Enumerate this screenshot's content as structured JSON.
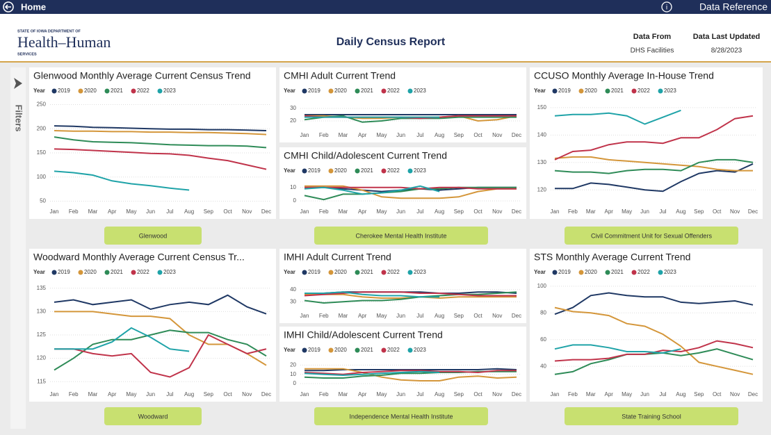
{
  "header": {
    "home": "Home",
    "data_reference": "Data Reference",
    "agency_line": "STATE OF IOWA DEPARTMENT OF",
    "agency_name": "Health–Human",
    "agency_sub": "SERVICES",
    "title": "Daily Census Report",
    "data_from_label": "Data From",
    "data_from": "DHS Facilities",
    "updated_label": "Data Last Updated",
    "updated": "8/28/2023"
  },
  "filters": "Filters",
  "buttons": [
    "Glenwood",
    "Cherokee Mental Health Institute",
    "Civil Commitment Unit for Sexual Offenders",
    "Woodward",
    "Independence Mental Health Institute",
    "State Training School"
  ],
  "chart_data": [
    {
      "type": "line",
      "title": "Glenwood Monthly Average Current Census Trend",
      "legend_title": "Year",
      "categories": [
        "Jan",
        "Feb",
        "Mar",
        "Apr",
        "May",
        "Jun",
        "Jul",
        "Aug",
        "Sep",
        "Oct",
        "Nov",
        "Dec"
      ],
      "ylim": [
        45,
        255
      ],
      "yticks": [
        50,
        100,
        150,
        200,
        250
      ],
      "grid": true,
      "series": [
        {
          "name": "2019",
          "color": "#1f3864",
          "values": [
            206,
            205,
            203,
            202,
            201,
            200,
            199,
            199,
            198,
            198,
            197,
            196
          ]
        },
        {
          "name": "2020",
          "color": "#d4963a",
          "values": [
            196,
            195,
            195,
            194,
            194,
            193,
            193,
            192,
            192,
            191,
            190,
            188
          ]
        },
        {
          "name": "2021",
          "color": "#2e8b57",
          "values": [
            183,
            177,
            173,
            172,
            171,
            169,
            167,
            166,
            165,
            165,
            164,
            161
          ]
        },
        {
          "name": "2022",
          "color": "#c0334a",
          "values": [
            158,
            157,
            155,
            153,
            151,
            149,
            148,
            145,
            139,
            134,
            125,
            116
          ]
        },
        {
          "name": "2023",
          "color": "#1fa3a8",
          "values": [
            112,
            109,
            104,
            92,
            86,
            82,
            77,
            73,
            null,
            null,
            null,
            null
          ]
        }
      ]
    },
    {
      "type": "line",
      "title": "CMHI Adult Current Trend",
      "legend_title": "Year",
      "categories": [
        "Jan",
        "Feb",
        "Mar",
        "Apr",
        "May",
        "Jun",
        "Jul",
        "Aug",
        "Sep",
        "Oct",
        "Nov",
        "Dec"
      ],
      "ylim": [
        15,
        35
      ],
      "yticks": [
        20,
        30
      ],
      "grid": true,
      "series": [
        {
          "name": "2019",
          "color": "#1f3864",
          "values": [
            25,
            25,
            25,
            25,
            25,
            25,
            25,
            25,
            25,
            25,
            25,
            25
          ]
        },
        {
          "name": "2020",
          "color": "#d4963a",
          "values": [
            24,
            24,
            23,
            22,
            22,
            23,
            23,
            23,
            24,
            20,
            21,
            24
          ]
        },
        {
          "name": "2021",
          "color": "#2e8b57",
          "values": [
            21,
            23,
            24,
            19,
            20,
            22,
            22,
            22,
            23,
            23,
            23,
            23
          ]
        },
        {
          "name": "2022",
          "color": "#c0334a",
          "values": [
            24,
            23,
            23,
            23,
            23,
            23,
            22,
            23,
            24,
            24,
            24,
            24
          ]
        },
        {
          "name": "2023",
          "color": "#1fa3a8",
          "values": [
            23,
            23,
            23,
            23,
            23,
            23,
            23,
            23,
            null,
            null,
            null,
            null
          ]
        }
      ]
    },
    {
      "type": "line",
      "title": "CMHI Child/Adolescent Current Trend",
      "legend_title": "Year",
      "categories": [
        "Jan",
        "Feb",
        "Mar",
        "Apr",
        "May",
        "Jun",
        "Jul",
        "Aug",
        "Sep",
        "Oct",
        "Nov",
        "Dec"
      ],
      "ylim": [
        -2,
        14
      ],
      "yticks": [
        0,
        10
      ],
      "grid": true,
      "series": [
        {
          "name": "2019",
          "color": "#1f3864",
          "values": [
            10,
            10,
            9,
            8,
            7,
            8,
            9,
            8,
            9,
            10,
            10,
            10
          ]
        },
        {
          "name": "2020",
          "color": "#d4963a",
          "values": [
            11,
            11,
            11,
            8,
            3,
            2,
            2,
            2,
            3,
            7,
            9,
            9
          ]
        },
        {
          "name": "2021",
          "color": "#2e8b57",
          "values": [
            4,
            1,
            5,
            5,
            6,
            7,
            9,
            9,
            10,
            10,
            10,
            10
          ]
        },
        {
          "name": "2022",
          "color": "#c0334a",
          "values": [
            10,
            10,
            10,
            10,
            10,
            10,
            9,
            10,
            10,
            9,
            9,
            9
          ]
        },
        {
          "name": "2023",
          "color": "#1fa3a8",
          "values": [
            9,
            10,
            8,
            5,
            6,
            8,
            11,
            7,
            null,
            null,
            null,
            null
          ]
        }
      ]
    },
    {
      "type": "line",
      "title": "CCUSO Monthly Average In-House Trend",
      "legend_title": "Year",
      "categories": [
        "Jan",
        "Feb",
        "Mar",
        "Apr",
        "May",
        "Jun",
        "Jul",
        "Aug",
        "Sep",
        "Oct",
        "Nov",
        "Dec"
      ],
      "ylim": [
        115,
        152
      ],
      "yticks": [
        120,
        130,
        140,
        150
      ],
      "grid": true,
      "series": [
        {
          "name": "2019",
          "color": "#1f3864",
          "values": [
            120.5,
            120.5,
            122.5,
            122,
            121,
            120,
            119.5,
            123,
            126,
            127,
            126.5,
            129.5
          ]
        },
        {
          "name": "2020",
          "color": "#d4963a",
          "values": [
            131.5,
            132,
            132,
            131,
            130.5,
            130,
            129.5,
            129,
            128.5,
            127.5,
            127,
            127
          ]
        },
        {
          "name": "2021",
          "color": "#2e8b57",
          "values": [
            127,
            126.5,
            126.5,
            126,
            127,
            127.5,
            127.5,
            127,
            130,
            131,
            131,
            130
          ]
        },
        {
          "name": "2022",
          "color": "#c0334a",
          "values": [
            131,
            134,
            134.5,
            136.5,
            137.5,
            137.5,
            137,
            139,
            139,
            142,
            146,
            147
          ]
        },
        {
          "name": "2023",
          "color": "#1fa3a8",
          "values": [
            147,
            147.5,
            147.5,
            148,
            147,
            144,
            146.5,
            149,
            null,
            null,
            null,
            null
          ]
        }
      ]
    },
    {
      "type": "line",
      "title": "Woodward Monthly Average Current Census Tr...",
      "legend_title": "Year",
      "categories": [
        "Jan",
        "Feb",
        "Mar",
        "Apr",
        "May",
        "Jun",
        "Jul",
        "Aug",
        "Sep",
        "Oct",
        "Nov",
        "Dec"
      ],
      "ylim": [
        114,
        136
      ],
      "yticks": [
        115,
        120,
        125,
        130,
        135
      ],
      "grid": true,
      "series": [
        {
          "name": "2019",
          "color": "#1f3864",
          "values": [
            132,
            132.5,
            131.5,
            132,
            132.5,
            130.5,
            131.5,
            132,
            131.5,
            133.5,
            131,
            129.5
          ]
        },
        {
          "name": "2020",
          "color": "#d4963a",
          "values": [
            130,
            130,
            130,
            129.5,
            129,
            129,
            128.5,
            125,
            123,
            123,
            121,
            118.5
          ]
        },
        {
          "name": "2021",
          "color": "#2e8b57",
          "values": [
            117.5,
            120,
            123,
            124,
            124,
            125,
            126,
            125.5,
            125.5,
            124,
            123,
            120.5
          ]
        },
        {
          "name": "2022",
          "color": "#c0334a",
          "values": [
            122,
            122,
            121,
            120.5,
            121,
            117,
            116,
            118,
            125,
            123,
            121,
            122
          ]
        },
        {
          "name": "2023",
          "color": "#1fa3a8",
          "values": [
            122,
            122,
            122,
            123.5,
            126.5,
            124.5,
            122,
            121.5,
            null,
            null,
            null,
            null
          ]
        }
      ]
    },
    {
      "type": "line",
      "title": "IMHI Adult Current Trend",
      "legend_title": "Year",
      "categories": [
        "Jan",
        "Feb",
        "Mar",
        "Apr",
        "May",
        "Jun",
        "Jul",
        "Aug",
        "Sep",
        "Oct",
        "Nov",
        "Dec"
      ],
      "ylim": [
        25,
        45
      ],
      "yticks": [
        30,
        40
      ],
      "grid": true,
      "series": [
        {
          "name": "2019",
          "color": "#1f3864",
          "values": [
            37,
            37,
            38,
            38,
            38,
            38,
            38,
            37,
            37,
            38,
            38,
            37
          ]
        },
        {
          "name": "2020",
          "color": "#d4963a",
          "values": [
            36,
            36,
            36,
            34,
            33,
            33,
            34,
            33,
            34,
            34,
            34,
            34
          ]
        },
        {
          "name": "2021",
          "color": "#2e8b57",
          "values": [
            31,
            29,
            30,
            31,
            31,
            32,
            34,
            35,
            36,
            36,
            37,
            38
          ]
        },
        {
          "name": "2022",
          "color": "#c0334a",
          "values": [
            35,
            36,
            37,
            38,
            38,
            38,
            37,
            37,
            36,
            35,
            35,
            35
          ]
        },
        {
          "name": "2023",
          "color": "#1fa3a8",
          "values": [
            37,
            37,
            38,
            36,
            35,
            35,
            34,
            34,
            null,
            null,
            null,
            null
          ]
        }
      ]
    },
    {
      "type": "line",
      "title": "IMHI Child/Adolescent Current Trend",
      "legend_title": "Year",
      "categories": [
        "Jan",
        "Feb",
        "Mar",
        "Apr",
        "May",
        "Jun",
        "Jul",
        "Aug",
        "Sep",
        "Oct",
        "Nov",
        "Dec"
      ],
      "ylim": [
        -3,
        24
      ],
      "yticks": [
        0,
        10,
        20
      ],
      "grid": true,
      "series": [
        {
          "name": "2019",
          "color": "#1f3864",
          "values": [
            14,
            14,
            15,
            15,
            15,
            15,
            15,
            15,
            15,
            15,
            16,
            15
          ]
        },
        {
          "name": "2020",
          "color": "#d4963a",
          "values": [
            16,
            16,
            16,
            12,
            7,
            4,
            3,
            3,
            7,
            8,
            6,
            7
          ]
        },
        {
          "name": "2021",
          "color": "#2e8b57",
          "values": [
            7,
            6,
            6,
            8,
            9,
            11,
            11,
            12,
            12,
            13,
            13,
            13
          ]
        },
        {
          "name": "2022",
          "color": "#c0334a",
          "values": [
            12,
            11,
            10,
            12,
            13,
            14,
            14,
            13,
            13,
            12,
            14,
            14
          ]
        },
        {
          "name": "2023",
          "color": "#1fa3a8",
          "values": [
            11,
            10,
            9,
            10,
            11,
            12,
            13,
            12,
            null,
            null,
            null,
            null
          ]
        }
      ]
    },
    {
      "type": "line",
      "title": "STS Monthly Average Current Trend",
      "legend_title": "Year",
      "categories": [
        "Jan",
        "Feb",
        "Mar",
        "Apr",
        "May",
        "Jun",
        "Jul",
        "Aug",
        "Sep",
        "Oct",
        "Nov",
        "Dec"
      ],
      "ylim": [
        25,
        102
      ],
      "yticks": [
        40,
        60,
        80,
        100
      ],
      "grid": true,
      "series": [
        {
          "name": "2019",
          "color": "#1f3864",
          "values": [
            79,
            84,
            93,
            95,
            93,
            92,
            92,
            88,
            87,
            88,
            89,
            86
          ]
        },
        {
          "name": "2020",
          "color": "#d4963a",
          "values": [
            84,
            81,
            80,
            78,
            72,
            70,
            64,
            55,
            43,
            40,
            37,
            34
          ]
        },
        {
          "name": "2021",
          "color": "#2e8b57",
          "values": [
            34,
            36,
            42,
            45,
            49,
            49,
            50,
            48,
            50,
            53,
            49,
            45
          ]
        },
        {
          "name": "2022",
          "color": "#c0334a",
          "values": [
            44,
            45,
            45,
            46,
            49,
            49,
            52,
            51,
            54,
            59,
            57,
            54
          ]
        },
        {
          "name": "2023",
          "color": "#1fa3a8",
          "values": [
            53,
            56,
            56,
            54,
            51,
            51,
            50,
            53,
            null,
            null,
            null,
            null
          ]
        }
      ]
    }
  ]
}
